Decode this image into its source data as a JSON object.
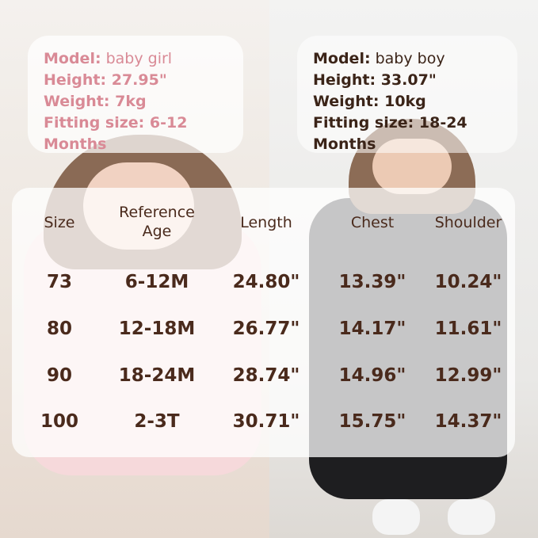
{
  "girl_info": {
    "model_label": "Model:",
    "model_value": " baby girl",
    "height": "Height: 27.95\"",
    "weight": "Weight: 7kg",
    "fitting": "Fitting size: 6-12 Months",
    "color": "#d98a96"
  },
  "boy_info": {
    "model_label": "Model:",
    "model_value": " baby boy",
    "height": "Height: 33.07\"",
    "weight": "Weight: 10kg",
    "fitting": "Fitting size: 18-24 Months",
    "color": "#3b2418"
  },
  "size_table": {
    "headers": [
      "Size",
      "Reference Age",
      "Length",
      "Chest",
      "Shoulder"
    ],
    "rows": [
      [
        "73",
        "6-12M",
        "24.80\"",
        "13.39\"",
        "10.24\""
      ],
      [
        "80",
        "12-18M",
        "26.77\"",
        "14.17\"",
        "11.61\""
      ],
      [
        "90",
        "18-24M",
        "28.74\"",
        "14.96\"",
        "12.99\""
      ],
      [
        "100",
        "2-3T",
        "30.71\"",
        "15.75\"",
        "14.37\""
      ]
    ]
  }
}
